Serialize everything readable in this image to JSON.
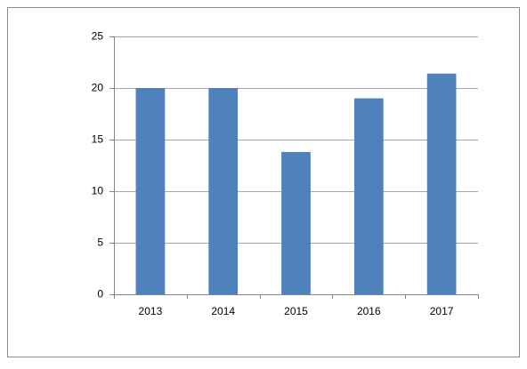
{
  "chart_data": {
    "type": "bar",
    "categories": [
      "2013",
      "2014",
      "2015",
      "2016",
      "2017"
    ],
    "values": [
      20,
      20,
      13.8,
      19,
      21.4
    ],
    "color": "#4f81bd",
    "ylim": [
      0,
      25
    ],
    "yticks": [
      0,
      5,
      10,
      15,
      20,
      25
    ],
    "grid": true
  }
}
